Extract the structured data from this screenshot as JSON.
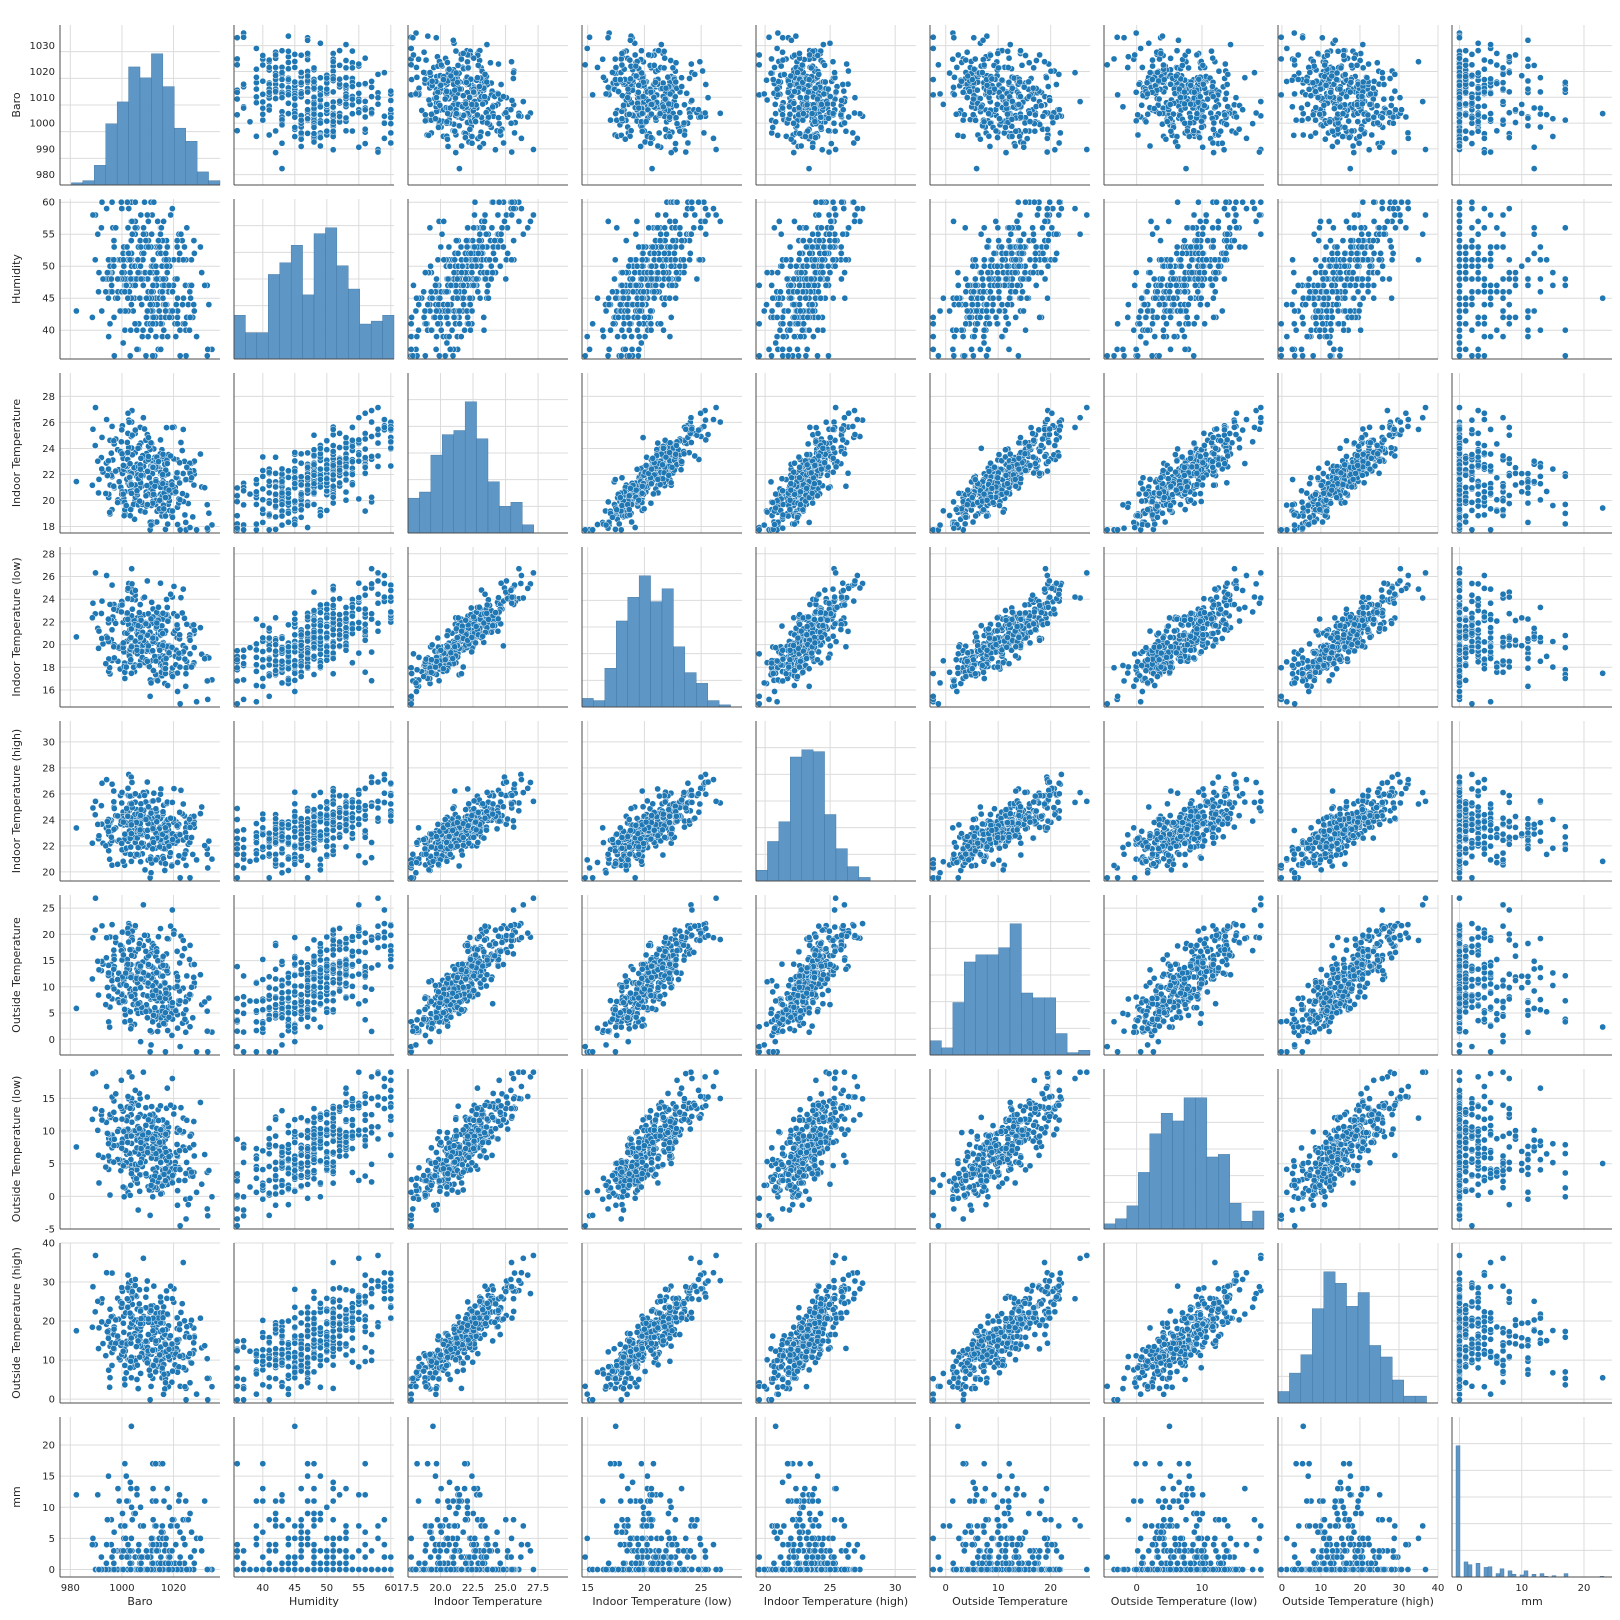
{
  "chart_data": {
    "type": "scatter",
    "kind": "pairplot",
    "diagonal": "histogram",
    "grid": true,
    "legend": "none",
    "colors": {
      "marker": "#1f77b4",
      "hist_fill": "#5e97c6",
      "hist_edge": "#3a6f9d",
      "marker_edge": "#ffffff",
      "grid": "#dcdcdc",
      "spine": "#4d4d4d"
    },
    "variables": [
      {
        "name": "Baro",
        "lim": [
          976,
          1038
        ],
        "ticks": [
          980,
          1000,
          1020
        ],
        "y_ticks": [
          980,
          990,
          1000,
          1010,
          1020,
          1030
        ],
        "x_ticks": [
          980,
          1000,
          1020
        ],
        "mean": 1010,
        "sd": 10
      },
      {
        "name": "Humidity",
        "lim": [
          35.5,
          60.5
        ],
        "ticks": [
          40,
          45,
          50,
          55
        ],
        "y_ticks": [
          40,
          45,
          50,
          55,
          60
        ],
        "x_ticks": [
          40,
          45,
          50,
          55,
          60
        ],
        "mean": 48,
        "sd": 6
      },
      {
        "name": "Indoor Temperature",
        "lim": [
          17.5,
          29.8
        ],
        "y_ticks": [
          18,
          20,
          22,
          24,
          26,
          28
        ],
        "x_ticks": [
          17.5,
          20.0,
          22.5,
          25.0,
          27.5
        ],
        "x_tick_labels": [
          "17.5",
          "20.0",
          "22.5",
          "25.0",
          "27.5"
        ],
        "mean": 21.8,
        "sd": 2.0
      },
      {
        "name": "Indoor Temperature (low)",
        "lim": [
          14.5,
          28.6
        ],
        "y_ticks": [
          16,
          18,
          20,
          22,
          24,
          26,
          28
        ],
        "x_ticks": [
          15,
          20,
          25
        ],
        "mean": 20.4,
        "sd": 2.1
      },
      {
        "name": "Indoor Temperature (high)",
        "lim": [
          19.3,
          31.6
        ],
        "y_ticks": [
          20,
          22,
          24,
          26,
          28,
          30
        ],
        "x_ticks": [
          20,
          25,
          30
        ],
        "mean": 23.3,
        "sd": 1.6
      },
      {
        "name": "Outside Temperature",
        "lim": [
          -3,
          27.5
        ],
        "y_ticks": [
          0,
          5,
          10,
          15,
          20,
          25
        ],
        "x_ticks": [
          0,
          10,
          20
        ],
        "mean": 11,
        "sd": 5.5
      },
      {
        "name": "Outside Temperature (low)",
        "lim": [
          -5,
          19.5
        ],
        "y_ticks": [
          -5,
          0,
          5,
          10,
          15
        ],
        "x_ticks": [
          0,
          10
        ],
        "mean": 7.5,
        "sd": 4.5
      },
      {
        "name": "Outside Temperature (high)",
        "lim": [
          -1,
          40
        ],
        "y_ticks": [
          0,
          10,
          20,
          30,
          40
        ],
        "x_ticks": [
          0,
          10,
          20,
          30,
          40
        ],
        "mean": 16,
        "sd": 7
      },
      {
        "name": "mm",
        "lim": [
          -1.2,
          24.5
        ],
        "y_ticks": [
          0,
          5,
          10,
          15,
          20
        ],
        "x_ticks": [
          0,
          10,
          20
        ],
        "mean": 2,
        "sd": 4
      }
    ]
  }
}
